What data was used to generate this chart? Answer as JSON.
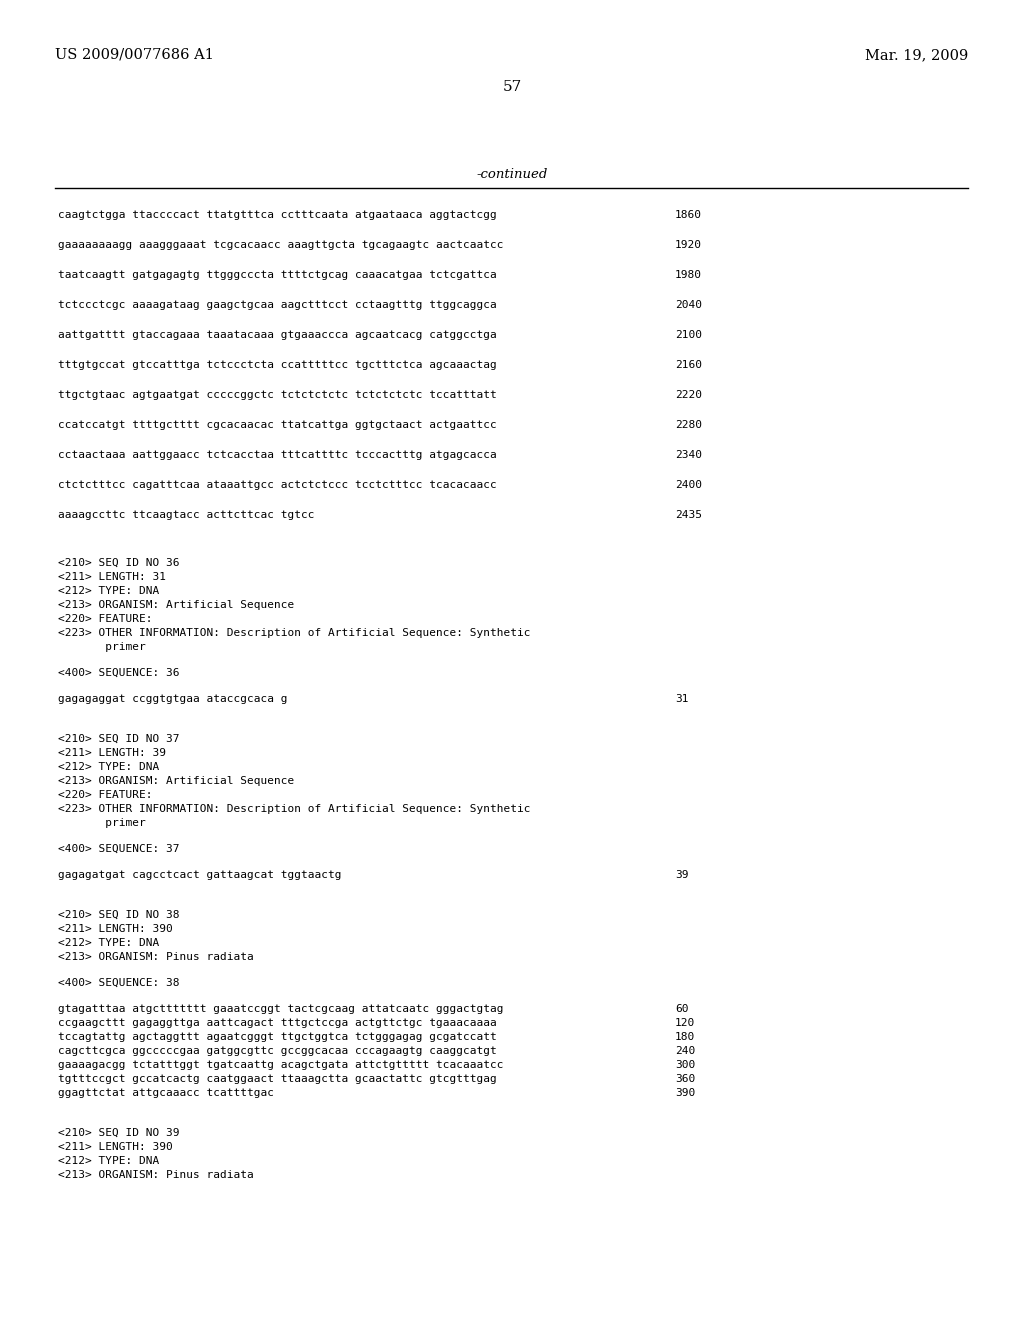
{
  "header_left": "US 2009/0077686 A1",
  "header_right": "Mar. 19, 2009",
  "page_number": "57",
  "continued_label": "-continued",
  "background_color": "#ffffff",
  "text_color": "#000000",
  "font_size_header": 10.5,
  "font_size_body": 8.0,
  "font_size_page": 11,
  "seq_lines": [
    {
      "text": "caagtctgga ttaccccact ttatgtttca cctttcaata atgaataaca aggtactcgg",
      "num": "1860"
    },
    {
      "text": "gaaaaaaaagg aaagggaaat tcgcacaacc aaagttgcta tgcagaagtc aactcaatcc",
      "num": "1920"
    },
    {
      "text": "taatcaagtt gatgagagtg ttgggcccta ttttctgcag caaacatgaa tctcgattca",
      "num": "1980"
    },
    {
      "text": "tctccctcgc aaaagataag gaagctgcaa aagctttcct cctaagtttg ttggcaggca",
      "num": "2040"
    },
    {
      "text": "aattgatttt gtaccagaaa taaatacaaa gtgaaaccca agcaatcacg catggcctga",
      "num": "2100"
    },
    {
      "text": "tttgtgccat gtccatttga tctccctcta ccatttttcc tgctttctca agcaaactag",
      "num": "2160"
    },
    {
      "text": "ttgctgtaac agtgaatgat cccccggctc tctctctctc tctctctctc tccatttatt",
      "num": "2220"
    },
    {
      "text": "ccatccatgt ttttgctttt cgcacaacac ttatcattga ggtgctaact actgaattcc",
      "num": "2280"
    },
    {
      "text": "cctaactaaa aattggaacc tctcacctaa tttcattttc tcccactttg atgagcacca",
      "num": "2340"
    },
    {
      "text": "ctctctttcc cagatttcaa ataaattgcc actctctccc tcctctttcc tcacacaacc",
      "num": "2400"
    },
    {
      "text": "aaaagccttc ttcaagtacc acttcttcac tgtcc",
      "num": "2435"
    }
  ],
  "meta_blocks": [
    {
      "meta": [
        "<210> SEQ ID NO 36",
        "<211> LENGTH: 31",
        "<212> TYPE: DNA",
        "<213> ORGANISM: Artificial Sequence",
        "<220> FEATURE:",
        "<223> OTHER INFORMATION: Description of Artificial Sequence: Synthetic",
        "       primer"
      ],
      "seq_label": "<400> SEQUENCE: 36",
      "sequences": [
        {
          "text": "gagagaggat ccggtgtgaa ataccgcaca g",
          "num": "31"
        }
      ]
    },
    {
      "meta": [
        "<210> SEQ ID NO 37",
        "<211> LENGTH: 39",
        "<212> TYPE: DNA",
        "<213> ORGANISM: Artificial Sequence",
        "<220> FEATURE:",
        "<223> OTHER INFORMATION: Description of Artificial Sequence: Synthetic",
        "       primer"
      ],
      "seq_label": "<400> SEQUENCE: 37",
      "sequences": [
        {
          "text": "gagagatgat cagcctcact gattaagcat tggtaactg",
          "num": "39"
        }
      ]
    },
    {
      "meta": [
        "<210> SEQ ID NO 38",
        "<211> LENGTH: 390",
        "<212> TYPE: DNA",
        "<213> ORGANISM: Pinus radiata"
      ],
      "seq_label": "<400> SEQUENCE: 38",
      "sequences": [
        {
          "text": "gtagatttaa atgcttttttt gaaatccggt tactcgcaag attatcaatc gggactgtag",
          "num": "60"
        },
        {
          "text": "ccgaagcttt gagaggttga aattcagact tttgctccga actgttctgc tgaaacaaaa",
          "num": "120"
        },
        {
          "text": "tccagtattg agctaggttt agaatcgggt ttgctggtca tctgggagag gcgatccatt",
          "num": "180"
        },
        {
          "text": "cagcttcgca ggcccccgaa gatggcgttc gccggcacaa cccagaagtg caaggcatgt",
          "num": "240"
        },
        {
          "text": "gaaaagacgg tctatttggt tgatcaattg acagctgata attctgttttt tcacaaatcc",
          "num": "300"
        },
        {
          "text": "tgtttccgct gccatcactg caatggaact ttaaagctta gcaactattc gtcgtttgag",
          "num": "360"
        },
        {
          "text": "ggagttctat attgcaaacc tcattttgac",
          "num": "390"
        }
      ]
    },
    {
      "meta": [
        "<210> SEQ ID NO 39",
        "<211> LENGTH: 390",
        "<212> TYPE: DNA",
        "<213> ORGANISM: Pinus radiata"
      ],
      "seq_label": null,
      "sequences": []
    }
  ]
}
